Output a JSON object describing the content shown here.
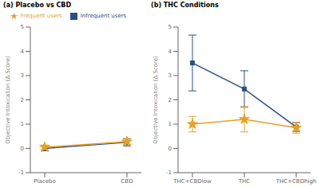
{
  "chart_data": [
    {
      "type": "line",
      "title": "(a) Placebo vs CBD",
      "categories": [
        "Placebo",
        "CBD"
      ],
      "ylabel": "Objective Intoxication (Δ Score)",
      "ylim": [
        -1,
        5
      ],
      "yticks": [
        -1,
        0,
        1,
        2,
        3,
        4,
        5
      ],
      "legend": "top",
      "series": [
        {
          "name": "Infrequent users",
          "color": "#2e4d8a",
          "marker": "square",
          "values": [
            0.0,
            0.25
          ],
          "error": [
            0.1,
            0.15
          ]
        },
        {
          "name": "Frequent users",
          "color": "#e8a020",
          "marker": "star",
          "values": [
            0.05,
            0.28
          ],
          "error": [
            0.09,
            0.12
          ]
        }
      ]
    },
    {
      "type": "line",
      "title": "(b) THC Conditions",
      "categories": [
        "THC+CBDlow",
        "THC",
        "THC+CBDhigh"
      ],
      "ylabel": "Objective Intoxication (Δ Score)",
      "ylim": [
        -1,
        5
      ],
      "yticks": [
        -1,
        0,
        1,
        2,
        3,
        4,
        5
      ],
      "series": [
        {
          "name": "Infrequent users",
          "color": "#2e4d8a",
          "marker": "square",
          "values": [
            3.52,
            2.45,
            0.88
          ],
          "error": [
            1.15,
            0.75,
            0.18
          ]
        },
        {
          "name": "Frequent users",
          "color": "#e8a020",
          "marker": "star",
          "values": [
            1.0,
            1.2,
            0.85
          ],
          "error": [
            0.32,
            0.52,
            0.22
          ]
        }
      ]
    }
  ]
}
